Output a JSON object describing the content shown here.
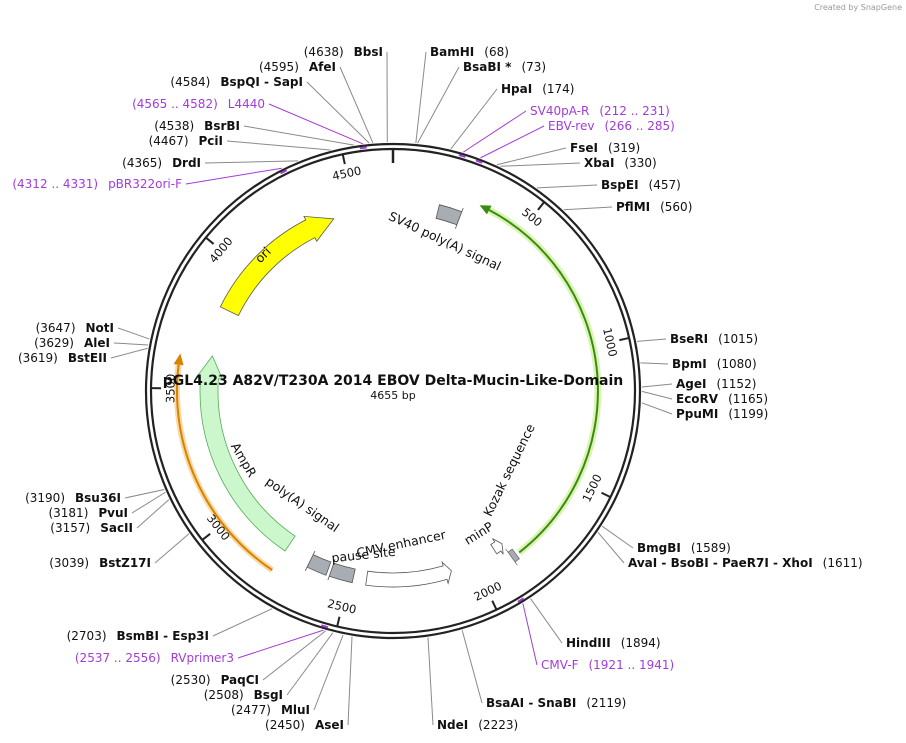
{
  "credit": "Created by SnapGene",
  "title": "pGL4.23 A82V/T230A 2014 EBOV Delta-Mucin-Like-Domain",
  "length": "4655 bp",
  "ticks": [
    500,
    1000,
    1500,
    2000,
    2500,
    3000,
    3500,
    4000,
    4500
  ],
  "sites": [
    {
      "name": "BbsI",
      "position": "(4638)"
    },
    {
      "name": "AfeI",
      "position": "(4595)"
    },
    {
      "name": "BspQI - SapI",
      "position": "(4584)"
    },
    {
      "name": "BsrBI",
      "position": "(4538)"
    },
    {
      "name": "PciI",
      "position": "(4467)"
    },
    {
      "name": "DrdI",
      "position": "(4365)"
    },
    {
      "name": "NotI",
      "position": "(3647)"
    },
    {
      "name": "AleI",
      "position": "(3629)"
    },
    {
      "name": "BstEII",
      "position": "(3619)"
    },
    {
      "name": "Bsu36I",
      "position": "(3190)"
    },
    {
      "name": "PvuI",
      "position": "(3181)"
    },
    {
      "name": "SacII",
      "position": "(3157)"
    },
    {
      "name": "BstZ17I",
      "position": "(3039)"
    },
    {
      "name": "BsmBI - Esp3I",
      "position": "(2703)"
    },
    {
      "name": "PaqCI",
      "position": "(2530)"
    },
    {
      "name": "BsgI",
      "position": "(2508)"
    },
    {
      "name": "MluI",
      "position": "(2477)"
    },
    {
      "name": "AseI",
      "position": "(2450)"
    },
    {
      "name": "NdeI",
      "position": "(2223)"
    },
    {
      "name": "BsaAI - SnaBI",
      "position": "(2119)"
    },
    {
      "name": "HindIII",
      "position": "(1894)"
    },
    {
      "name": "AvaI - BsoBI - PaeR7I - XhoI",
      "position": "(1611)"
    },
    {
      "name": "BmgBI",
      "position": "(1589)"
    },
    {
      "name": "PpuMI",
      "position": "(1199)"
    },
    {
      "name": "EcoRV",
      "position": "(1165)"
    },
    {
      "name": "AgeI",
      "position": "(1152)"
    },
    {
      "name": "BpmI",
      "position": "(1080)"
    },
    {
      "name": "BseRI",
      "position": "(1015)"
    },
    {
      "name": "PflMI",
      "position": "(560)"
    },
    {
      "name": "BspEI",
      "position": "(457)"
    },
    {
      "name": "XbaI",
      "position": "(330)"
    },
    {
      "name": "FseI",
      "position": "(319)"
    },
    {
      "name": "HpaI",
      "position": "(174)"
    },
    {
      "name": "BsaBI *",
      "position": "(73)"
    },
    {
      "name": "BamHI",
      "position": "(68)"
    }
  ],
  "primers": [
    {
      "name": "L4440",
      "range": "(4565 .. 4582)"
    },
    {
      "name": "pBR322ori-F",
      "range": "(4312 .. 4331)"
    },
    {
      "name": "RVprimer3",
      "range": "(2537 .. 2556)"
    },
    {
      "name": "CMV-F",
      "range": "(1921 .. 1941)"
    },
    {
      "name": "EBV-rev",
      "range": "(266 .. 285)"
    },
    {
      "name": "SV40pA-R",
      "range": "(212 .. 231)"
    }
  ],
  "features": [
    {
      "label": "ori"
    },
    {
      "label": "SV40 poly(A) signal"
    },
    {
      "label": "AmpR"
    },
    {
      "label": "poly(A) signal"
    },
    {
      "label": "CMV enhancer"
    },
    {
      "label": "pause site"
    },
    {
      "label": "minP"
    },
    {
      "label": "Kozak sequence"
    }
  ]
}
